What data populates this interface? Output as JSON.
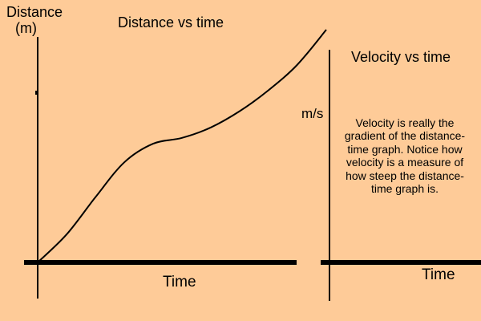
{
  "chart_data": [
    {
      "type": "line",
      "title": "Distance vs time",
      "ylabel_lines": [
        "Distance",
        "(m)"
      ],
      "xlabel": "Time",
      "grid": false,
      "series": [
        {
          "x": [
            0,
            0.1,
            0.2,
            0.3,
            0.4,
            0.5,
            0.6,
            0.7,
            0.8,
            0.9,
            1.0
          ],
          "y": [
            0,
            0.12,
            0.28,
            0.43,
            0.51,
            0.535,
            0.58,
            0.65,
            0.74,
            0.85,
            1.0
          ]
        }
      ]
    },
    {
      "type": "line",
      "title": "Velocity vs time",
      "ylabel": "m/s",
      "xlabel": "Time",
      "grid": false,
      "series": []
    }
  ],
  "note": {
    "text": "Velocity is really the gradient of the distance-time graph. Notice how velocity is a measure of how steep the distance-time graph is."
  },
  "colors": {
    "background": "#fecb98",
    "ink": "#000000"
  }
}
